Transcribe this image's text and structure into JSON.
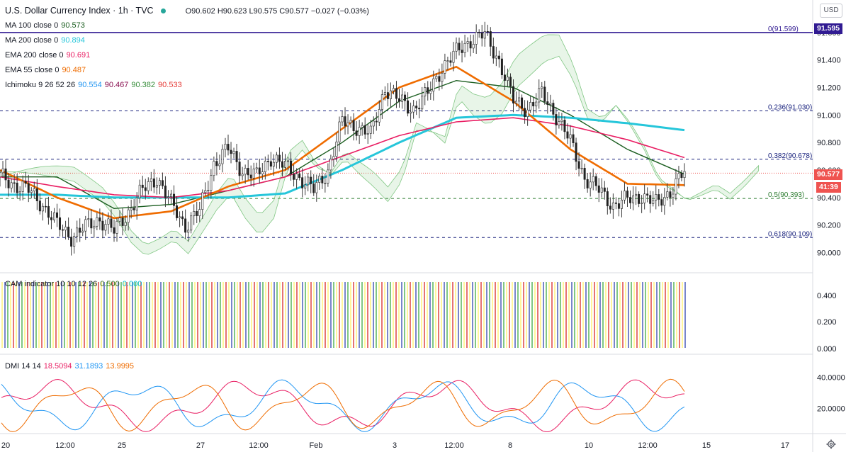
{
  "header": {
    "title": "U.S. Dollar Currency Index · 1h · TVC",
    "ohlc": "O90.602 H90.623 L90.575 C90.577 −0.027 (−0.03%)",
    "currency_button": "USD"
  },
  "legend": [
    {
      "label": "MA 100 close 0",
      "value": "90.573",
      "color": "#1b5e20"
    },
    {
      "label": "MA 200 close 0",
      "value": "90.894",
      "color": "#26c6da"
    },
    {
      "label": "EMA 200 close 0",
      "value": "90.691",
      "color": "#e91e63"
    },
    {
      "label": "EMA 55 close 0",
      "value": "90.487",
      "color": "#ef6c00"
    }
  ],
  "ichimoku": {
    "label": "Ichimoku 9 26 52 26",
    "values": [
      "90.554",
      "90.467",
      "90.382",
      "90.533"
    ],
    "colors": [
      "#2196f3",
      "#880e4f",
      "#388e3c",
      "#e53935"
    ]
  },
  "cam": {
    "label": "CAM indicator 10 10 12 26",
    "values": [
      "0.500",
      "0.000"
    ],
    "colors": [
      "#33691e",
      "#00bcd4"
    ]
  },
  "dmi": {
    "label": "DMI 14 14",
    "values": [
      "18.5094",
      "31.1893",
      "13.9995"
    ],
    "colors": [
      "#e91e63",
      "#2196f3",
      "#ef6c00"
    ]
  },
  "price_tags": {
    "last": "90.577",
    "countdown": "41:39",
    "top_level": "91.595"
  },
  "fib_levels": [
    {
      "label": "0(91.599)",
      "value": 91.599,
      "color": "#311b92",
      "solid": true
    },
    {
      "label": "0.236(91.030)",
      "value": 91.03,
      "color": "#1a237e"
    },
    {
      "label": "0.382(90.678)",
      "value": 90.678,
      "color": "#1a237e"
    },
    {
      "label": "0.5(90.393)",
      "value": 90.393,
      "color": "#2e7d32"
    },
    {
      "label": "0.618(90.109)",
      "value": 90.109,
      "color": "#1a237e"
    }
  ],
  "axes": {
    "price_ticks": [
      "91.600",
      "91.400",
      "91.200",
      "91.000",
      "90.800",
      "90.600",
      "90.400",
      "90.200",
      "90.000"
    ],
    "cam_ticks": [
      "0.400",
      "0.200",
      "0.000"
    ],
    "dmi_ticks": [
      "40.0000",
      "20.0000"
    ],
    "time_ticks": [
      "20",
      "12:00",
      "25",
      "27",
      "12:00",
      "Feb",
      "3",
      "12:00",
      "8",
      "10",
      "12:00",
      "15",
      "17"
    ]
  },
  "chart_data": {
    "type": "line",
    "title": "U.S. Dollar Currency Index · 1h · TVC",
    "x_range": [
      "20",
      "17"
    ],
    "y_range": [
      89.92,
      91.64
    ],
    "series": [
      {
        "name": "Close",
        "x": [
          0,
          5,
          10,
          15,
          20,
          25,
          30,
          35,
          40,
          45,
          50,
          55,
          60,
          65,
          70,
          75,
          80,
          85,
          90,
          95,
          100,
          105,
          110,
          115,
          120,
          125,
          130,
          135,
          140,
          145,
          150,
          155,
          160,
          165,
          170,
          175,
          180,
          185,
          190,
          195,
          200,
          205,
          210,
          215,
          220,
          225,
          230,
          235,
          240
        ],
        "values": [
          90.55,
          90.5,
          90.45,
          90.35,
          90.2,
          90.12,
          90.18,
          90.25,
          90.15,
          90.3,
          90.45,
          90.55,
          90.35,
          90.2,
          90.3,
          90.65,
          90.75,
          90.6,
          90.55,
          90.7,
          90.62,
          90.55,
          90.45,
          90.6,
          90.95,
          90.92,
          90.85,
          91.2,
          91.1,
          91.05,
          91.15,
          91.35,
          91.45,
          91.55,
          91.58,
          91.4,
          91.1,
          91.05,
          91.15,
          91.0,
          90.8,
          90.55,
          90.45,
          90.35,
          90.38,
          90.42,
          90.35,
          90.45,
          90.58
        ]
      },
      {
        "name": "MA 100 close 0",
        "x": [
          0,
          20,
          40,
          60,
          80,
          100,
          120,
          140,
          160,
          180,
          200,
          220,
          240
        ],
        "values": [
          90.55,
          90.55,
          90.32,
          90.35,
          90.45,
          90.55,
          90.8,
          91.1,
          91.25,
          91.2,
          91.0,
          90.75,
          90.57
        ]
      },
      {
        "name": "MA 200 close 0",
        "x": [
          0,
          20,
          40,
          60,
          80,
          100,
          120,
          140,
          160,
          180,
          200,
          220,
          240
        ],
        "values": [
          90.42,
          90.42,
          90.4,
          90.4,
          90.4,
          90.43,
          90.6,
          90.8,
          90.98,
          91.0,
          90.98,
          90.94,
          90.89
        ]
      },
      {
        "name": "EMA 200 close 0",
        "x": [
          0,
          20,
          40,
          60,
          80,
          100,
          120,
          140,
          160,
          180,
          200,
          220,
          240
        ],
        "values": [
          90.55,
          90.48,
          90.42,
          90.4,
          90.45,
          90.55,
          90.7,
          90.85,
          90.95,
          90.98,
          90.92,
          90.82,
          90.69
        ]
      },
      {
        "name": "EMA 55 close 0",
        "x": [
          0,
          20,
          40,
          60,
          80,
          100,
          120,
          140,
          160,
          180,
          200,
          220,
          240
        ],
        "values": [
          90.6,
          90.4,
          90.25,
          90.3,
          90.48,
          90.6,
          90.9,
          91.2,
          91.35,
          91.1,
          90.75,
          90.5,
          90.49
        ]
      }
    ]
  }
}
